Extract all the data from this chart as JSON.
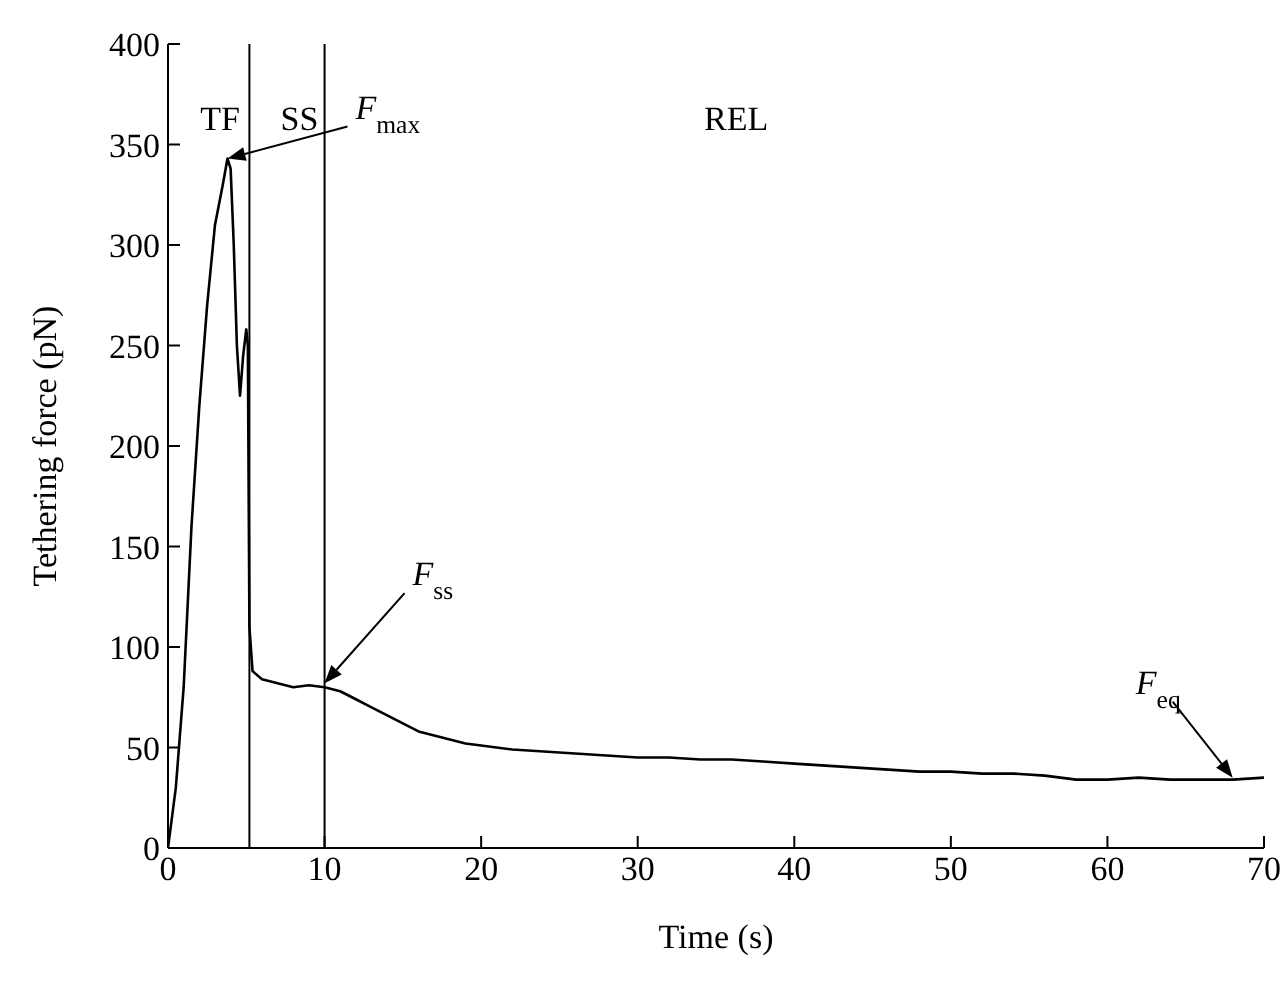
{
  "chart_data": {
    "type": "line",
    "xlabel": "Time (s)",
    "ylabel": "Tethering force (pN)",
    "x": [
      0,
      0.5,
      1,
      1.5,
      2,
      2.5,
      3,
      3.5,
      3.8,
      4.0,
      4.2,
      4.4,
      4.6,
      4.8,
      5.0,
      5.1,
      5.2,
      5.4,
      6,
      7,
      8,
      9,
      10,
      11,
      12,
      13,
      14,
      15,
      16,
      17,
      18,
      19,
      20,
      22,
      24,
      26,
      28,
      30,
      32,
      34,
      36,
      38,
      40,
      42,
      44,
      46,
      48,
      50,
      52,
      54,
      56,
      58,
      60,
      62,
      64,
      66,
      68,
      70
    ],
    "series": [
      {
        "color": "#000000",
        "values": [
          0,
          30,
          80,
          160,
          220,
          270,
          310,
          330,
          343,
          338,
          300,
          250,
          225,
          245,
          258,
          250,
          110,
          88,
          84,
          82,
          80,
          81,
          80,
          78,
          74,
          70,
          66,
          62,
          58,
          56,
          54,
          52,
          51,
          49,
          48,
          47,
          46,
          45,
          45,
          44,
          44,
          43,
          42,
          41,
          40,
          39,
          38,
          38,
          37,
          37,
          36,
          34,
          34,
          35,
          34,
          34,
          34,
          35
        ]
      }
    ],
    "xlim": [
      0,
      70
    ],
    "xticks": [
      0,
      10,
      20,
      30,
      40,
      50,
      60,
      70
    ],
    "ylim": [
      0,
      400
    ],
    "yticks": [
      0,
      50,
      100,
      150,
      200,
      250,
      300,
      350,
      400
    ],
    "marker": "none",
    "line_style": "solid",
    "ref_lines": [
      {
        "axis": "x",
        "value": 5.2,
        "color": "#000000"
      },
      {
        "axis": "x",
        "value": 10,
        "color": "#000000"
      }
    ],
    "annotations": [
      "TF",
      "SS",
      "REL",
      "F$_{max}$",
      {
        "text": "F$_{ss}$",
        "x": 10,
        "y": 82
      },
      {
        "text": "F$_{eq}$",
        "x": 68,
        "y": 35
      }
    ]
  }
}
